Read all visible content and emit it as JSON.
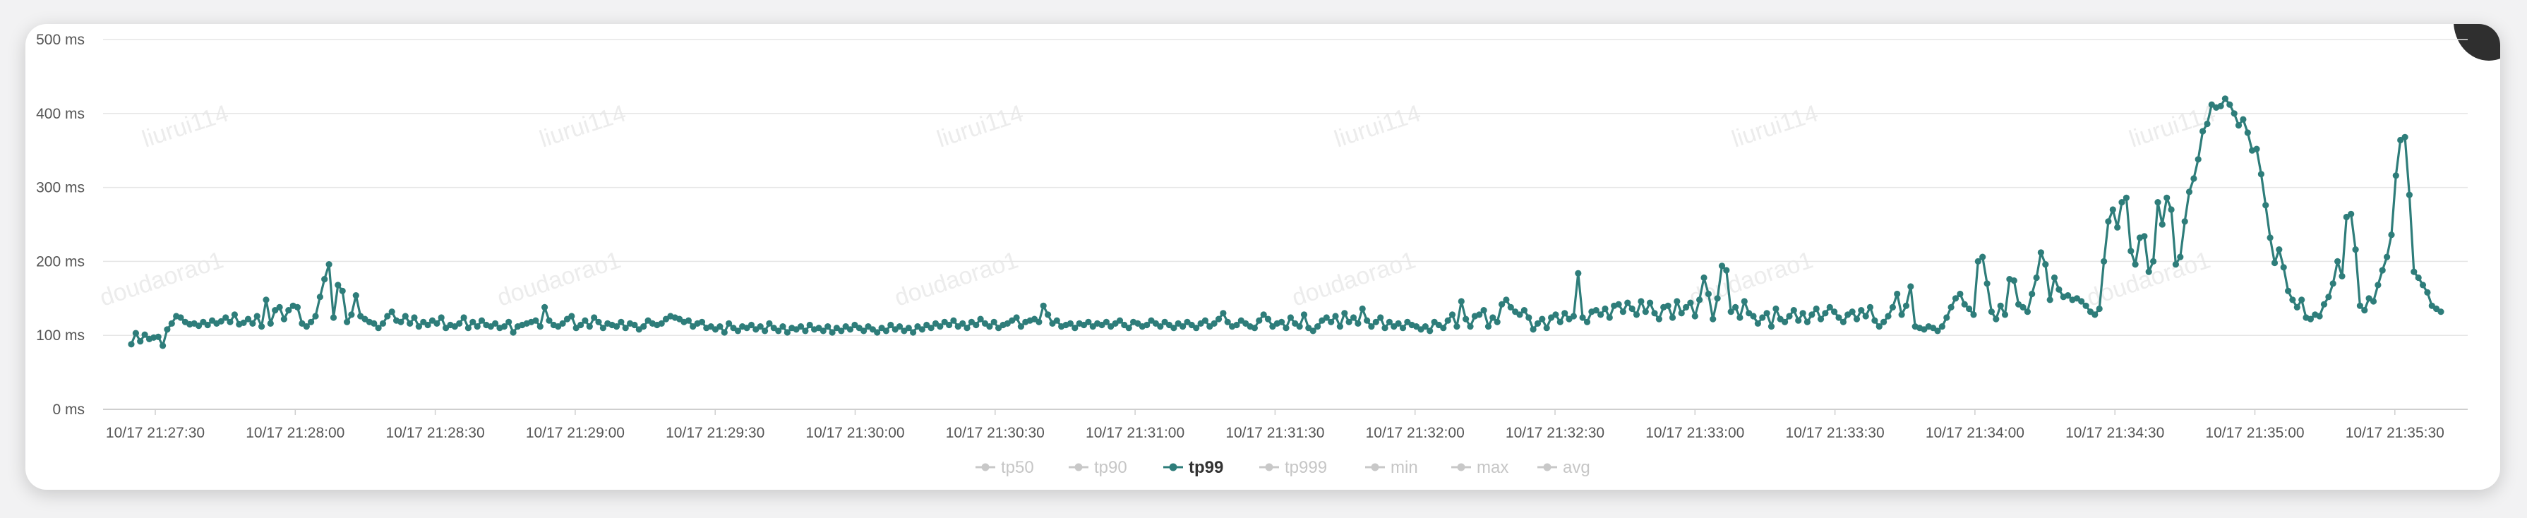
{
  "chart_data": {
    "type": "line",
    "y_unit": "ms",
    "ylim": [
      0,
      500
    ],
    "y_ticks": [
      0,
      100,
      200,
      300,
      400,
      500
    ],
    "y_tick_labels": [
      "0 ms",
      "100 ms",
      "200 ms",
      "300 ms",
      "400 ms",
      "500 ms"
    ],
    "x_tick_labels": [
      "10/17 21:27:30",
      "10/17 21:28:00",
      "10/17 21:28:30",
      "10/17 21:29:00",
      "10/17 21:29:30",
      "10/17 21:30:00",
      "10/17 21:30:30",
      "10/17 21:31:00",
      "10/17 21:31:30",
      "10/17 21:32:00",
      "10/17 21:32:30",
      "10/17 21:33:00",
      "10/17 21:33:30",
      "10/17 21:34:00",
      "10/17 21:34:30",
      "10/17 21:35:00",
      "10/17 21:35:30"
    ],
    "x_start": "10/17 21:27:30",
    "x_step_seconds": 1,
    "grid": true,
    "legend_position": "bottom-center",
    "active_series": "tp99",
    "series": [
      {
        "name": "tp50",
        "active": false,
        "color": "#c8c8c8",
        "values": []
      },
      {
        "name": "tp90",
        "active": false,
        "color": "#c8c8c8",
        "values": []
      },
      {
        "name": "tp99",
        "active": true,
        "color": "#2e7d7a",
        "values": [
          88,
          103,
          92,
          101,
          95,
          97,
          98,
          86,
          108,
          116,
          126,
          124,
          118,
          115,
          116,
          113,
          118,
          114,
          120,
          116,
          119,
          124,
          118,
          128,
          115,
          117,
          122,
          116,
          126,
          112,
          148,
          116,
          134,
          138,
          122,
          134,
          140,
          138,
          116,
          112,
          118,
          126,
          152,
          176,
          196,
          124,
          168,
          160,
          118,
          128,
          154,
          126,
          122,
          118,
          116,
          110,
          116,
          126,
          132,
          120,
          118,
          126,
          116,
          124,
          112,
          118,
          114,
          120,
          116,
          124,
          110,
          114,
          112,
          116,
          124,
          110,
          118,
          112,
          120,
          114,
          112,
          116,
          110,
          112,
          118,
          104,
          112,
          114,
          116,
          118,
          120,
          112,
          138,
          120,
          114,
          112,
          116,
          122,
          126,
          110,
          114,
          120,
          112,
          124,
          118,
          110,
          116,
          114,
          112,
          118,
          110,
          116,
          114,
          108,
          112,
          120,
          116,
          114,
          116,
          122,
          126,
          124,
          122,
          118,
          120,
          112,
          116,
          118,
          110,
          112,
          108,
          112,
          104,
          116,
          110,
          106,
          112,
          110,
          114,
          108,
          112,
          106,
          116,
          110,
          106,
          112,
          104,
          110,
          108,
          112,
          106,
          114,
          108,
          110,
          106,
          112,
          104,
          110,
          106,
          112,
          108,
          114,
          110,
          106,
          112,
          108,
          104,
          110,
          106,
          114,
          108,
          112,
          106,
          110,
          104,
          112,
          108,
          114,
          110,
          116,
          112,
          118,
          114,
          120,
          112,
          116,
          110,
          118,
          114,
          122,
          116,
          112,
          118,
          110,
          114,
          116,
          120,
          124,
          112,
          118,
          120,
          122,
          118,
          140,
          128,
          116,
          120,
          112,
          114,
          116,
          110,
          116,
          114,
          118,
          112,
          116,
          114,
          118,
          112,
          116,
          120,
          114,
          110,
          118,
          116,
          112,
          114,
          120,
          116,
          112,
          118,
          114,
          110,
          116,
          112,
          118,
          114,
          110,
          116,
          120,
          112,
          116,
          122,
          130,
          118,
          112,
          114,
          120,
          116,
          112,
          110,
          120,
          128,
          122,
          112,
          116,
          118,
          110,
          124,
          116,
          112,
          128,
          110,
          106,
          112,
          120,
          124,
          118,
          126,
          112,
          130,
          118,
          124,
          116,
          136,
          120,
          112,
          118,
          124,
          110,
          118,
          112,
          116,
          110,
          118,
          114,
          112,
          108,
          112,
          106,
          118,
          114,
          110,
          120,
          128,
          112,
          146,
          122,
          112,
          126,
          128,
          134,
          112,
          124,
          118,
          142,
          148,
          138,
          132,
          128,
          134,
          124,
          108,
          116,
          122,
          110,
          124,
          128,
          118,
          130,
          122,
          126,
          184,
          124,
          118,
          132,
          134,
          128,
          136,
          124,
          140,
          142,
          132,
          144,
          136,
          128,
          146,
          132,
          144,
          130,
          122,
          138,
          140,
          124,
          146,
          130,
          138,
          144,
          126,
          148,
          178,
          156,
          122,
          150,
          194,
          188,
          132,
          138,
          124,
          146,
          130,
          126,
          116,
          124,
          130,
          112,
          136,
          122,
          118,
          126,
          134,
          120,
          130,
          118,
          128,
          136,
          122,
          130,
          138,
          132,
          124,
          118,
          128,
          132,
          122,
          134,
          126,
          138,
          120,
          112,
          118,
          126,
          138,
          156,
          128,
          140,
          166,
          112,
          110,
          108,
          112,
          110,
          106,
          112,
          124,
          138,
          150,
          156,
          142,
          136,
          128,
          200,
          206,
          170,
          132,
          122,
          140,
          128,
          176,
          174,
          142,
          138,
          132,
          156,
          178,
          212,
          196,
          148,
          178,
          162,
          152,
          154,
          148,
          150,
          146,
          140,
          132,
          128,
          136,
          200,
          254,
          270,
          246,
          280,
          286,
          214,
          196,
          232,
          234,
          186,
          200,
          280,
          250,
          286,
          270,
          196,
          206,
          254,
          294,
          312,
          338,
          376,
          386,
          412,
          408,
          410,
          420,
          412,
          400,
          384,
          392,
          374,
          350,
          352,
          318,
          276,
          232,
          198,
          216,
          192,
          160,
          148,
          138,
          148,
          124,
          122,
          128,
          126,
          142,
          152,
          170,
          200,
          180,
          260,
          264,
          216,
          140,
          134,
          150,
          146,
          168,
          188,
          206,
          236,
          316,
          364,
          368,
          290,
          186,
          178,
          168,
          158,
          140,
          136,
          132
        ]
      },
      {
        "name": "tp999",
        "active": false,
        "color": "#c8c8c8",
        "values": []
      },
      {
        "name": "min",
        "active": false,
        "color": "#c8c8c8",
        "values": []
      },
      {
        "name": "max",
        "active": false,
        "color": "#c8c8c8",
        "values": []
      },
      {
        "name": "avg",
        "active": false,
        "color": "#c8c8c8",
        "values": []
      }
    ]
  },
  "watermark": {
    "user": "liurui114",
    "account": "doudaorao1"
  }
}
